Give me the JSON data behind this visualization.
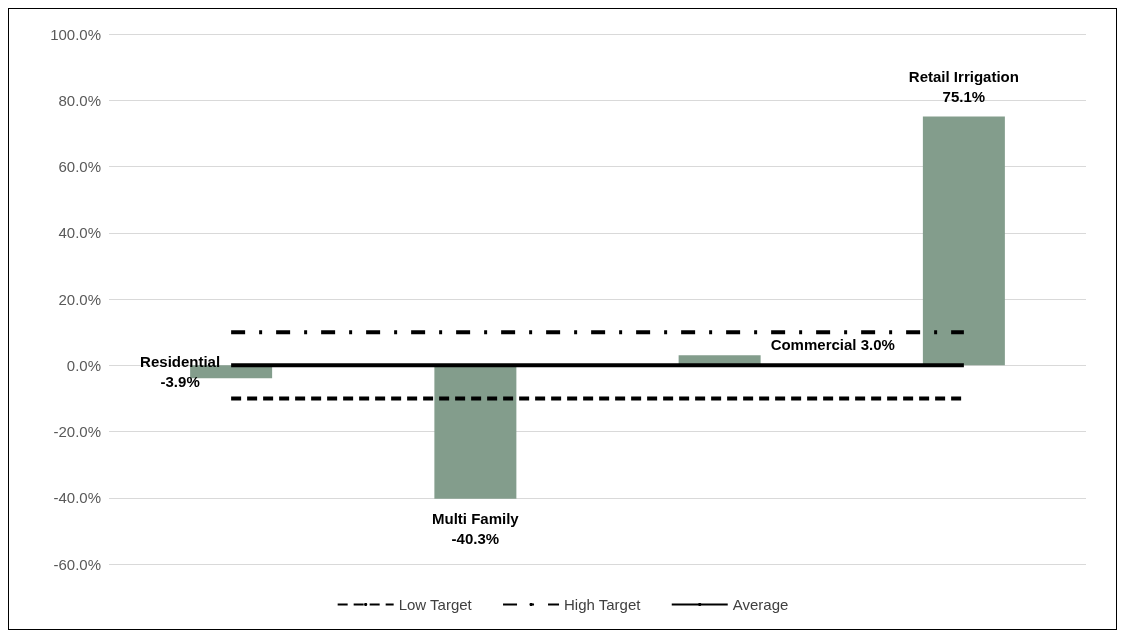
{
  "chart_data": {
    "type": "bar",
    "categories": [
      "Residential",
      "Multi Family",
      "Commercial",
      "Retail Irrigation"
    ],
    "tick_labels": "y",
    "grid": "y",
    "legend": "bottom",
    "ylim": [
      -60,
      100
    ],
    "yticks": [
      {
        "value": -60,
        "label": "-60.0%"
      },
      {
        "value": -40,
        "label": "-40.0%"
      },
      {
        "value": -20,
        "label": "-20.0%"
      },
      {
        "value": 0,
        "label": "0.0%"
      },
      {
        "value": 20,
        "label": "20.0%"
      },
      {
        "value": 40,
        "label": "40.0%"
      },
      {
        "value": 60,
        "label": "60.0%"
      },
      {
        "value": 80,
        "label": "80.0%"
      },
      {
        "value": 100,
        "label": "100.0%"
      }
    ],
    "series": [
      {
        "type": "bar",
        "color": "#839d8c",
        "values": [
          -3.9,
          -40.3,
          3.0,
          75.1
        ],
        "value_labels": [
          "-3.9%",
          "-40.3%",
          "3.0%",
          "75.1%"
        ]
      },
      {
        "type": "line",
        "name": "Low Target",
        "color": "#000000",
        "line_style": "dashed",
        "values": [
          -10,
          -10,
          -10,
          -10
        ]
      },
      {
        "type": "line",
        "name": "High Target",
        "color": "#000000",
        "line_style": "dashdot",
        "values": [
          10,
          10,
          10,
          10
        ]
      },
      {
        "type": "line",
        "name": "Average",
        "color": "#000000",
        "line_style": "solid",
        "values": [
          0,
          0,
          0,
          0
        ]
      }
    ]
  }
}
